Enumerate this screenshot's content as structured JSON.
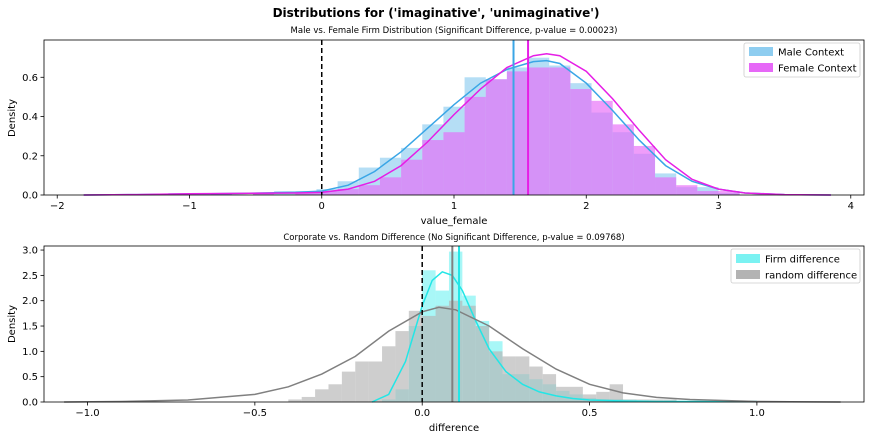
{
  "figure": {
    "suptitle": "Distributions for ('imaginative', 'unimaginative')"
  },
  "chart_data": [
    {
      "type": "area",
      "title": "Male vs. Female Firm Distribution (Significant Difference, p-value = 0.00023)",
      "xlabel": "value_female",
      "ylabel": "Density",
      "xlim": [
        -2.1,
        4.1
      ],
      "ylim": [
        0,
        0.79
      ],
      "xticks": [
        -2,
        -1,
        0,
        1,
        2,
        3,
        4
      ],
      "yticks": [
        0.0,
        0.2,
        0.4,
        0.6
      ],
      "legend_position": "top-right",
      "zero_line": 0,
      "hist_bin_edges": [
        -1.8,
        -1.64,
        -1.48,
        -1.32,
        -1.16,
        -1.0,
        -0.84,
        -0.68,
        -0.52,
        -0.36,
        -0.2,
        -0.04,
        0.12,
        0.28,
        0.44,
        0.6,
        0.76,
        0.92,
        1.08,
        1.24,
        1.4,
        1.56,
        1.72,
        1.88,
        2.04,
        2.2,
        2.36,
        2.52,
        2.68,
        2.84,
        3.0,
        3.16,
        3.32
      ],
      "series": [
        {
          "name": "Male Context",
          "color": "#3aa6e6",
          "hist_color": "#8ecdf0",
          "hist_values": [
            0.0,
            0.0,
            0.0,
            0.0,
            0.01,
            0.0,
            0.01,
            0.0,
            0.01,
            0.02,
            0.02,
            0.03,
            0.07,
            0.14,
            0.19,
            0.24,
            0.36,
            0.45,
            0.6,
            0.59,
            0.65,
            0.7,
            0.66,
            0.57,
            0.42,
            0.32,
            0.21,
            0.11,
            0.04,
            0.04,
            0.01,
            0.0
          ],
          "kde_x": [
            -1.8,
            -1.4,
            -1.0,
            -0.6,
            -0.2,
            0.0,
            0.2,
            0.4,
            0.6,
            0.8,
            1.0,
            1.2,
            1.4,
            1.6,
            1.7,
            1.8,
            2.0,
            2.2,
            2.4,
            2.6,
            2.8,
            3.0,
            3.2,
            3.5,
            3.85
          ],
          "kde_y": [
            0.0,
            0.002,
            0.005,
            0.008,
            0.013,
            0.02,
            0.05,
            0.12,
            0.22,
            0.34,
            0.46,
            0.57,
            0.64,
            0.68,
            0.685,
            0.67,
            0.57,
            0.43,
            0.28,
            0.15,
            0.07,
            0.03,
            0.01,
            0.002,
            0.0
          ],
          "mean": 1.45
        },
        {
          "name": "Female Context",
          "color": "#e61ee6",
          "hist_color": "#e668f7",
          "hist_values": [
            0.0,
            0.0,
            0.0,
            0.0,
            0.0,
            0.0,
            0.01,
            0.0,
            0.01,
            0.0,
            0.01,
            0.02,
            0.03,
            0.05,
            0.09,
            0.18,
            0.28,
            0.32,
            0.5,
            0.59,
            0.63,
            0.65,
            0.65,
            0.54,
            0.48,
            0.36,
            0.25,
            0.09,
            0.05,
            0.02,
            0.02,
            0.0
          ],
          "kde_x": [
            -1.8,
            -1.4,
            -1.0,
            -0.6,
            -0.2,
            0.0,
            0.2,
            0.4,
            0.6,
            0.8,
            1.0,
            1.2,
            1.4,
            1.6,
            1.7,
            1.8,
            2.0,
            2.2,
            2.4,
            2.6,
            2.8,
            3.0,
            3.2,
            3.5,
            3.85
          ],
          "kde_y": [
            0.0,
            0.002,
            0.006,
            0.008,
            0.01,
            0.013,
            0.03,
            0.07,
            0.15,
            0.27,
            0.41,
            0.54,
            0.65,
            0.71,
            0.72,
            0.71,
            0.63,
            0.49,
            0.33,
            0.18,
            0.08,
            0.03,
            0.01,
            0.002,
            0.0
          ],
          "mean": 1.56
        }
      ]
    },
    {
      "type": "area",
      "title": "Corporate vs. Random Difference (No Significant Difference, p-value = 0.09768)",
      "xlabel": "difference",
      "ylabel": "Density",
      "xlim": [
        -1.13,
        1.32
      ],
      "ylim": [
        0,
        3.08
      ],
      "xticks": [
        -1.0,
        -0.5,
        0.0,
        0.5,
        1.0
      ],
      "yticks": [
        0.0,
        0.5,
        1.0,
        1.5,
        2.0,
        2.5,
        3.0
      ],
      "legend_position": "top-right",
      "zero_line": 0,
      "hist_bin_edges": [
        -0.4,
        -0.36,
        -0.32,
        -0.28,
        -0.24,
        -0.2,
        -0.16,
        -0.12,
        -0.08,
        -0.04,
        0.0,
        0.04,
        0.08,
        0.12,
        0.16,
        0.2,
        0.24,
        0.28,
        0.32,
        0.36,
        0.4,
        0.44,
        0.48,
        0.52,
        0.56,
        0.6,
        0.64,
        0.68,
        0.72,
        0.76,
        0.8,
        0.84,
        0.88,
        0.92,
        0.96,
        1.0
      ],
      "series": [
        {
          "name": "Firm difference",
          "color": "#22e6e6",
          "hist_color": "#7af2f2",
          "hist_values": [
            0.0,
            0.0,
            0.0,
            0.0,
            0.0,
            0.0,
            0.0,
            0.05,
            0.25,
            1.5,
            2.6,
            2.2,
            2.97,
            2.1,
            1.6,
            1.2,
            0.55,
            0.55,
            0.45,
            0.35,
            0.22,
            0.15,
            0.08,
            0.06,
            0.06,
            0.05,
            0.03,
            0.02,
            0.02,
            0.02,
            0.0,
            0.0,
            0.02,
            0.0,
            0.02
          ],
          "kde_x": [
            -0.15,
            -0.1,
            -0.05,
            0.0,
            0.03,
            0.06,
            0.09,
            0.12,
            0.16,
            0.2,
            0.25,
            0.3,
            0.35,
            0.4,
            0.45,
            0.5,
            0.6,
            0.7,
            0.8,
            0.9,
            1.0
          ],
          "kde_y": [
            0.0,
            0.15,
            0.8,
            1.9,
            2.4,
            2.57,
            2.5,
            2.2,
            1.6,
            1.05,
            0.6,
            0.35,
            0.2,
            0.12,
            0.07,
            0.04,
            0.02,
            0.01,
            0.01,
            0.01,
            0.01
          ],
          "mean": 0.11
        },
        {
          "name": "random difference",
          "color": "#808080",
          "hist_color": "#b3b3b3",
          "hist_values": [
            0.05,
            0.1,
            0.25,
            0.35,
            0.6,
            0.8,
            0.8,
            1.1,
            1.4,
            1.8,
            1.7,
            1.9,
            2.0,
            1.9,
            1.5,
            1.0,
            0.9,
            0.9,
            0.7,
            0.55,
            0.3,
            0.3,
            0.15,
            0.2,
            0.35,
            0.05,
            0.05,
            0.05,
            0.05,
            0.0,
            0.0,
            0.0,
            0.0,
            0.0,
            0.0
          ],
          "kde_x": [
            -1.07,
            -0.9,
            -0.7,
            -0.5,
            -0.4,
            -0.3,
            -0.2,
            -0.1,
            0.0,
            0.05,
            0.1,
            0.2,
            0.3,
            0.4,
            0.5,
            0.6,
            0.7,
            0.8,
            0.9,
            1.0,
            1.1,
            1.25
          ],
          "kde_y": [
            0.0,
            0.01,
            0.04,
            0.15,
            0.3,
            0.55,
            0.9,
            1.4,
            1.78,
            1.87,
            1.82,
            1.5,
            1.05,
            0.65,
            0.35,
            0.18,
            0.09,
            0.05,
            0.03,
            0.01,
            0.005,
            0.0
          ],
          "mean": 0.09
        }
      ]
    }
  ]
}
